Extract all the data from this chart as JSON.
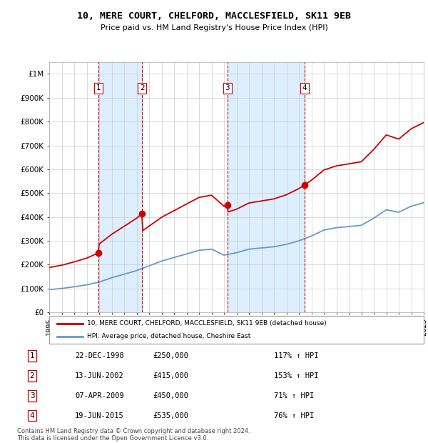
{
  "title_line1": "10, MERE COURT, CHELFORD, MACCLESFIELD, SK11 9EB",
  "title_line2": "Price paid vs. HM Land Registry's House Price Index (HPI)",
  "transactions": [
    {
      "num": 1,
      "date_str": "22-DEC-1998",
      "date_float": 1998.96,
      "price": 250000,
      "hpi_pct": "117% ↑ HPI"
    },
    {
      "num": 2,
      "date_str": "13-JUN-2002",
      "date_float": 2002.45,
      "price": 415000,
      "hpi_pct": "153% ↑ HPI"
    },
    {
      "num": 3,
      "date_str": "07-APR-2009",
      "date_float": 2009.27,
      "price": 450000,
      "hpi_pct": "71% ↑ HPI"
    },
    {
      "num": 4,
      "date_str": "19-JUN-2015",
      "date_float": 2015.46,
      "price": 535000,
      "hpi_pct": "76% ↑ HPI"
    }
  ],
  "legend_property": "10, MERE COURT, CHELFORD, MACCLESFIELD, SK11 9EB (detached house)",
  "legend_hpi": "HPI: Average price, detached house, Cheshire East",
  "footer1": "Contains HM Land Registry data © Crown copyright and database right 2024.",
  "footer2": "This data is licensed under the Open Government Licence v3.0.",
  "property_color": "#cc0000",
  "hpi_color": "#6699cc",
  "shade_color": "#ddeeff",
  "dashed_color": "#cc0000",
  "ylim": [
    0,
    1050000
  ],
  "yticks": [
    0,
    100000,
    200000,
    300000,
    400000,
    500000,
    600000,
    700000,
    800000,
    900000,
    1000000
  ],
  "ytick_labels": [
    "£0",
    "£100K",
    "£200K",
    "£300K",
    "£400K",
    "£500K",
    "£600K",
    "£700K",
    "£800K",
    "£900K",
    "£1M"
  ],
  "hpi_knots_x": [
    1995,
    1996,
    1997,
    1998,
    1999,
    2000,
    2001,
    2002,
    2003,
    2004,
    2005,
    2006,
    2007,
    2008,
    2009,
    2010,
    2011,
    2012,
    2013,
    2014,
    2015,
    2016,
    2017,
    2018,
    2019,
    2020,
    2021,
    2022,
    2023,
    2024,
    2025
  ],
  "hpi_knots_y": [
    95000,
    100000,
    107000,
    115000,
    127000,
    145000,
    160000,
    175000,
    195000,
    215000,
    230000,
    245000,
    260000,
    265000,
    240000,
    250000,
    265000,
    270000,
    275000,
    285000,
    300000,
    320000,
    345000,
    355000,
    360000,
    365000,
    395000,
    430000,
    420000,
    445000,
    460000
  ],
  "background_color": "#ffffff",
  "grid_color": "#cccccc"
}
